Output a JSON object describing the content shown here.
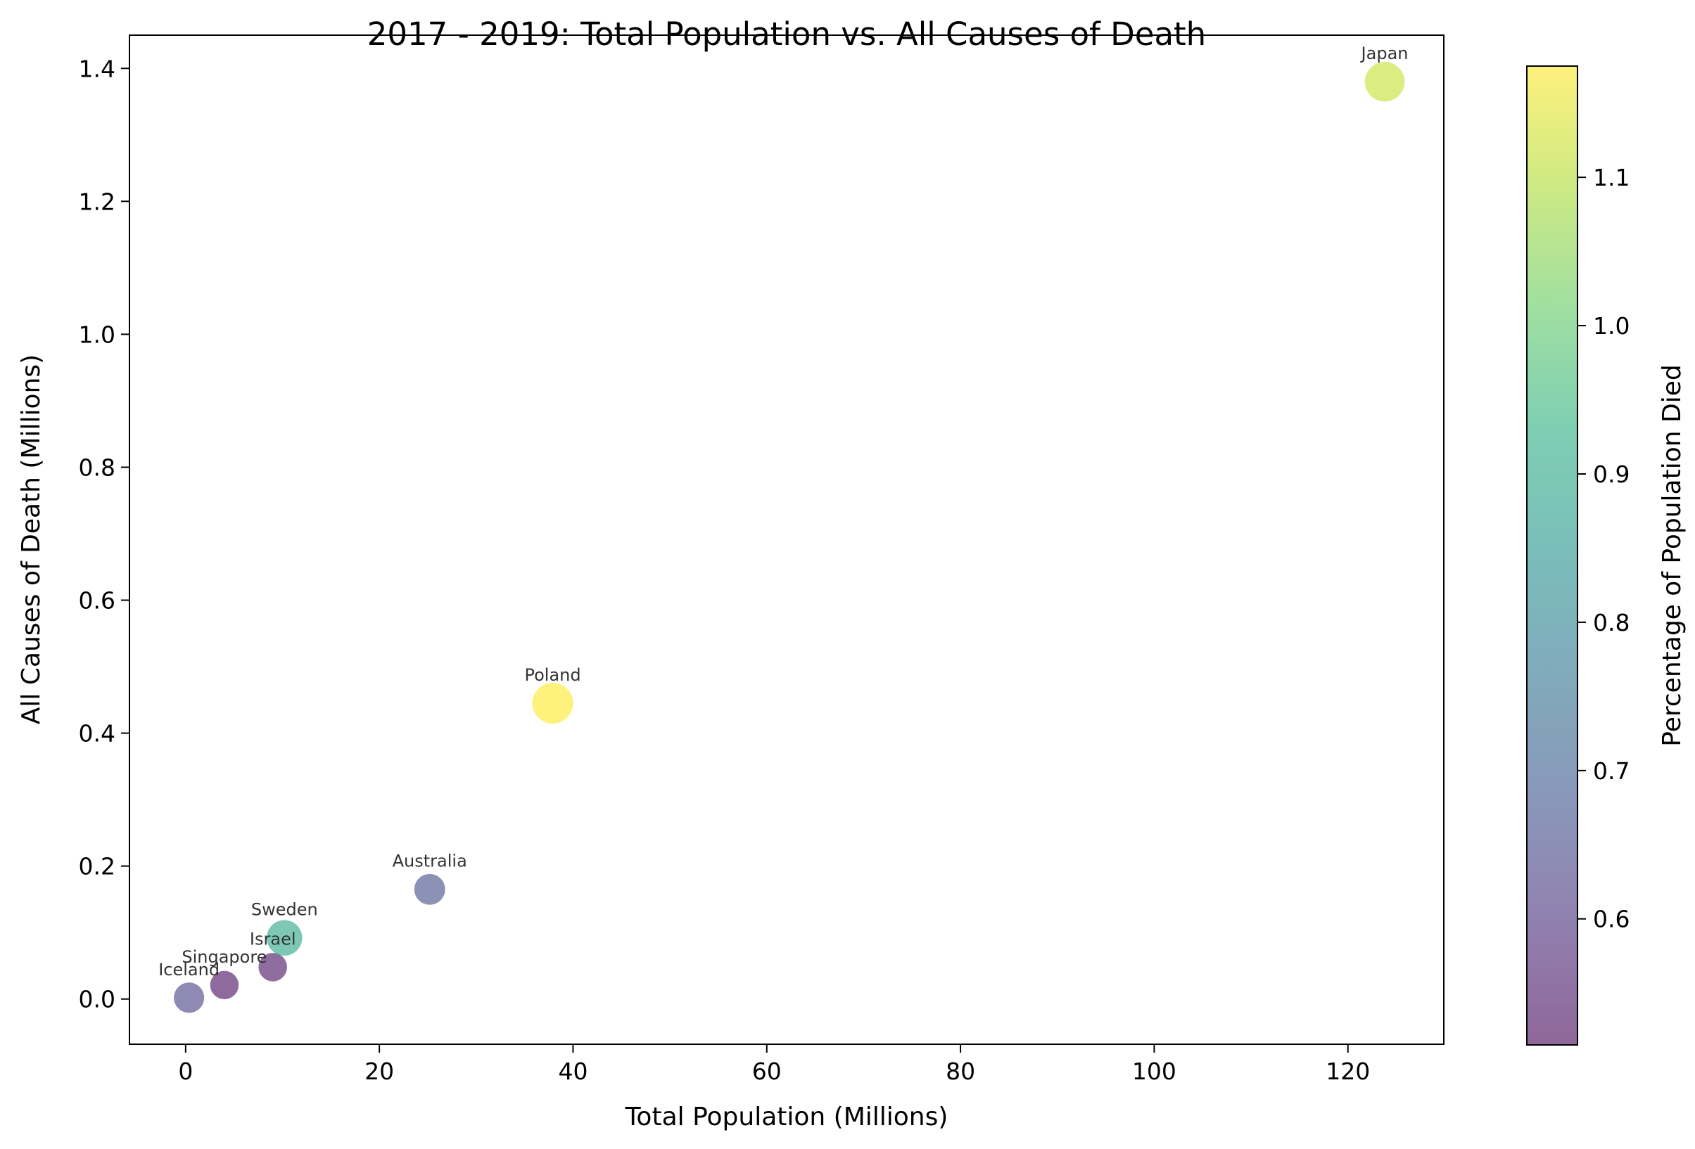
{
  "chart_data": {
    "type": "scatter",
    "title": "2017 - 2019: Total Population vs. All Causes of Death",
    "xlabel": "Total Population (Millions)",
    "ylabel": "All Causes of Death (Millions)",
    "colorbar_label": "Percentage of Population Died",
    "xlim": [
      -5.8,
      129.9
    ],
    "ylim": [
      -0.068,
      1.45
    ],
    "xticks": [
      0,
      20,
      40,
      60,
      80,
      100,
      120
    ],
    "yticks": [
      0.0,
      0.2,
      0.4,
      0.6,
      0.8,
      1.0,
      1.2,
      1.4
    ],
    "colorbar_range": [
      0.515,
      1.175
    ],
    "colorbar_ticks": [
      0.6,
      0.7,
      0.8,
      0.9,
      1.0,
      1.1
    ],
    "colormap": "viridis",
    "alpha": 0.6,
    "grid": false,
    "points": [
      {
        "label": "Iceland",
        "x": 0.35,
        "y": 0.002,
        "pct": 0.63
      },
      {
        "label": "Singapore",
        "x": 4.0,
        "y": 0.021,
        "pct": 0.53
      },
      {
        "label": "Israel",
        "x": 9.0,
        "y": 0.048,
        "pct": 0.535
      },
      {
        "label": "Sweden",
        "x": 10.2,
        "y": 0.092,
        "pct": 0.9
      },
      {
        "label": "Australia",
        "x": 25.2,
        "y": 0.165,
        "pct": 0.655
      },
      {
        "label": "Poland",
        "x": 37.9,
        "y": 0.445,
        "pct": 1.175
      },
      {
        "label": "Japan",
        "x": 123.8,
        "y": 1.38,
        "pct": 1.115
      }
    ]
  }
}
